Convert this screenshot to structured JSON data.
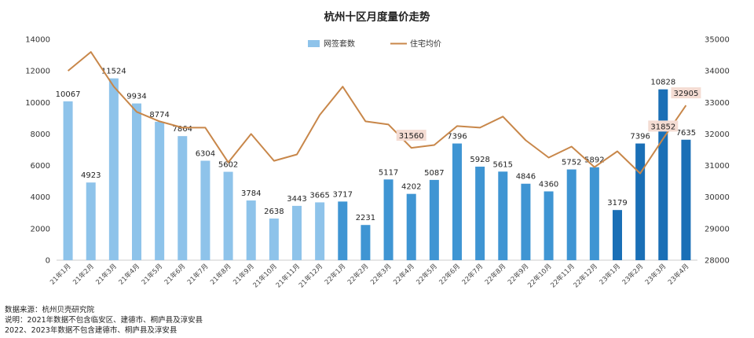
{
  "chart_data": {
    "type": "bar",
    "title": "杭州十区月度量价走势",
    "categories": [
      "21年1月",
      "21年2月",
      "21年3月",
      "21年4月",
      "21年5月",
      "21年6月",
      "21年7月",
      "21年8月",
      "21年9月",
      "21年10月",
      "21年11月",
      "21年12月",
      "22年1月",
      "22年2月",
      "22年3月",
      "22年4月",
      "22年5月",
      "22年6月",
      "22年7月",
      "22年8月",
      "22年9月",
      "22年10月",
      "22年11月",
      "22年12月",
      "23年1月",
      "23年2月",
      "23年3月",
      "23年4月"
    ],
    "series": [
      {
        "name": "网签套数",
        "type": "bar",
        "axis": "left",
        "values": [
          10067,
          4923,
          11524,
          9934,
          8774,
          7864,
          6304,
          5602,
          3784,
          2638,
          3443,
          3665,
          3717,
          2231,
          5117,
          4202,
          5087,
          7396,
          5928,
          5615,
          4846,
          4360,
          5752,
          5892,
          3179,
          7396,
          10828,
          7635
        ],
        "labels": [
          "10067",
          "4923",
          "11524",
          "9934",
          "8774",
          "7864",
          "6304",
          "5602",
          "3784",
          "2638",
          "3443",
          "3665",
          "3717",
          "2231",
          "5117",
          "4202",
          "5087",
          "7396",
          "5928",
          "5615",
          "4846",
          "4360",
          "5752",
          "5892",
          "3179",
          "7396",
          "10828",
          "7635"
        ],
        "color": "#8ec3ea"
      },
      {
        "name": "住宅均价",
        "type": "line",
        "axis": "right",
        "values": [
          34000,
          34600,
          33500,
          32700,
          32400,
          32200,
          32200,
          31100,
          32000,
          31150,
          31350,
          32600,
          33500,
          32400,
          32300,
          31560,
          31650,
          32250,
          32200,
          32550,
          31800,
          31250,
          31600,
          30950,
          31450,
          30750,
          31852,
          32905
        ],
        "color": "#c8874a"
      }
    ],
    "price_labels": [
      {
        "index": 15,
        "text": "31560"
      },
      {
        "index": 26,
        "text": "31852"
      },
      {
        "index": 27,
        "text": "32905"
      }
    ],
    "y_left": {
      "min": 0,
      "max": 14000,
      "ticks": [
        "0",
        "2000",
        "4000",
        "6000",
        "8000",
        "10000",
        "12000",
        "14000"
      ]
    },
    "y_right": {
      "min": 28000,
      "max": 35000,
      "ticks": [
        "28000",
        "29000",
        "30000",
        "31000",
        "32000",
        "33000",
        "34000",
        "35000"
      ]
    },
    "bar_colors": {
      "light": "#8ec3ea",
      "mid": "#3f95d3",
      "dark": "#1a6fb6"
    },
    "label_highlight": "#f4dcd3",
    "grid": false,
    "legend_position": "top-center"
  },
  "notes": [
    "数据来源：杭州贝壳研究院",
    "说明：2021年数据不包含临安区、建德市、桐庐县及淳安县",
    "2022、2023年数据不包含建德市、桐庐县及淳安县"
  ]
}
